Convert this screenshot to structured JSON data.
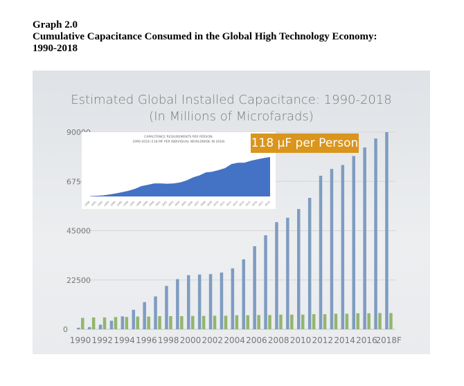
{
  "header": {
    "label": "Graph 2.0",
    "title_line1": "Cumulative Capacitance Consumed in the Global High Technology Economy:",
    "title_line2": "1990-2018"
  },
  "chart_data": [
    {
      "type": "bar",
      "title": "Estimated Global Installed Capacitance: 1990-2018",
      "subtitle": "(In Millions of Microfarads)",
      "categories": [
        "1990",
        "1991",
        "1992",
        "1993",
        "1994",
        "1995",
        "1996",
        "1997",
        "1998",
        "1999",
        "2000",
        "2001",
        "2002",
        "2003",
        "2004",
        "2005",
        "2006",
        "2007",
        "2008",
        "2009",
        "2010",
        "2011",
        "2012",
        "2013",
        "2014",
        "2015",
        "2016",
        "2017",
        "2018F"
      ],
      "tick_labels": [
        "1990",
        "1992",
        "1994",
        "1996",
        "1998",
        "2000",
        "2002",
        "2004",
        "2006",
        "2008",
        "2010",
        "2012",
        "2014",
        "2016",
        "2018F"
      ],
      "yticks": [
        "0",
        "22500",
        "45000",
        "67500",
        "90000"
      ],
      "ylim": [
        0,
        90000
      ],
      "grid": true,
      "series": [
        {
          "color": "#7f9cc0",
          "values": [
            700,
            1000,
            2100,
            3900,
            5900,
            8900,
            12400,
            15000,
            19800,
            22900,
            24700,
            25000,
            25200,
            25900,
            27800,
            31900,
            37900,
            42900,
            48900,
            50900,
            54900,
            60000,
            70100,
            73200,
            75000,
            79100,
            83000,
            87100,
            90000
          ]
        },
        {
          "color": "#93b56e",
          "values": [
            5200,
            5400,
            5400,
            5600,
            5600,
            5800,
            5800,
            6000,
            6000,
            6000,
            6100,
            6100,
            6200,
            6200,
            6400,
            6400,
            6500,
            6500,
            6700,
            6700,
            6700,
            6900,
            6900,
            7100,
            7100,
            7300,
            7300,
            7400,
            7400
          ]
        }
      ],
      "annotation": "118 µF per Person",
      "annotation_color": "#d9951c"
    },
    {
      "type": "area",
      "title_line1": "CAPACITANCE REQUIREMENTS PER PERSON:",
      "title_line2": "1990-2018 (118 MF PER INDIVIDUAL WORLDWIDE IN 2018)",
      "x": [
        "1990",
        "1991",
        "1992",
        "1993",
        "1994",
        "1995",
        "1996",
        "1997",
        "1998",
        "1999",
        "2000",
        "2001",
        "2002",
        "2003",
        "2004",
        "2005",
        "2006",
        "2007",
        "2008",
        "2009",
        "2010",
        "2011",
        "2012",
        "2013",
        "2014",
        "2015",
        "2016",
        "2017",
        "2018"
      ],
      "values": [
        1,
        2,
        3,
        6,
        9,
        13,
        17,
        23,
        31,
        35,
        39,
        39,
        38,
        39,
        42,
        48,
        57,
        63,
        72,
        74,
        79,
        85,
        97,
        101,
        101,
        107,
        111,
        115,
        118
      ],
      "color": "#4472c4"
    }
  ]
}
